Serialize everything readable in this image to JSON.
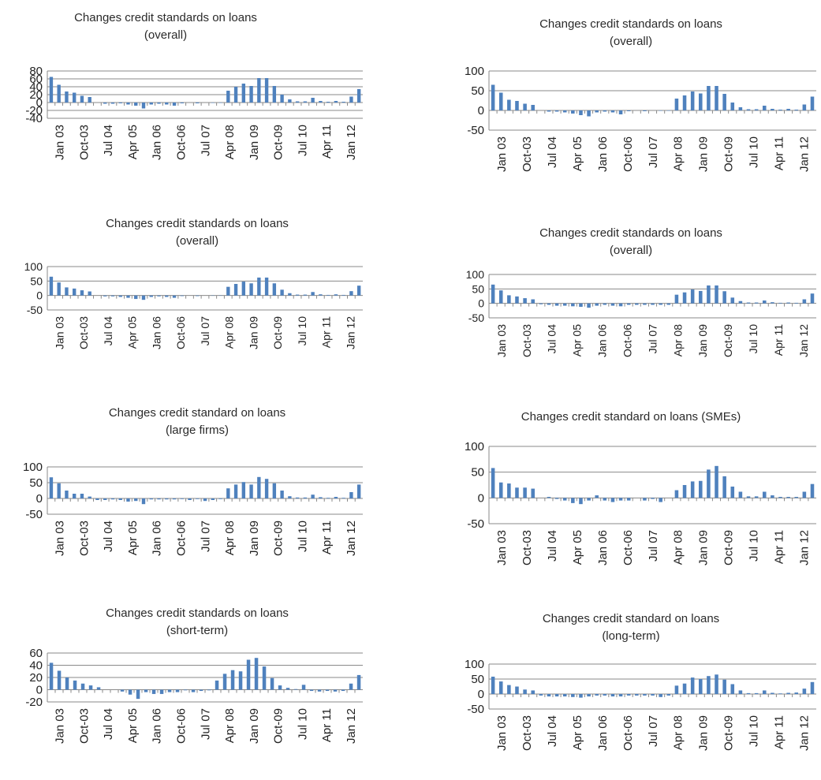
{
  "x_ticks": [
    "Jan 03",
    "Oct-03",
    "Jul 04",
    "Apr 05",
    "Jan 06",
    "Oct-06",
    "Jul 07",
    "Apr 08",
    "Jan 09",
    "Oct-09",
    "Jul 10",
    "Apr 11",
    "Jan 12"
  ],
  "bar_color": "#4f81bd",
  "chart_data": [
    {
      "type": "bar",
      "title": [
        "Changes credit standards on loans",
        "(overall)"
      ],
      "categories_label_ticks": "x_ticks",
      "ylim": [
        -40,
        80
      ],
      "yticks": [
        -40,
        -20,
        0,
        20,
        40,
        60,
        80
      ],
      "values": [
        65,
        45,
        28,
        25,
        17,
        14,
        0,
        -3,
        -3,
        -2,
        -5,
        -8,
        -15,
        -5,
        -3,
        -5,
        -8,
        -2,
        0,
        -2,
        0,
        -1,
        -1,
        30,
        40,
        48,
        42,
        62,
        62,
        42,
        20,
        8,
        3,
        3,
        12,
        4,
        2,
        4,
        2,
        15,
        34
      ]
    },
    {
      "type": "bar",
      "title": [
        "Changes credit standards on loans",
        "(overall)"
      ],
      "ylim": [
        -50,
        100
      ],
      "yticks": [
        -50,
        0,
        50,
        100
      ],
      "values": [
        65,
        45,
        27,
        24,
        17,
        14,
        0,
        -3,
        -3,
        -5,
        -8,
        -12,
        -15,
        -5,
        -3,
        -5,
        -10,
        -2,
        0,
        -2,
        0,
        -1,
        -1,
        30,
        38,
        48,
        43,
        62,
        62,
        42,
        20,
        8,
        3,
        3,
        12,
        4,
        2,
        4,
        2,
        15,
        35
      ]
    },
    {
      "type": "bar",
      "title": [
        "Changes credit standards on loans",
        "(overall)"
      ],
      "ylim": [
        -50,
        100
      ],
      "yticks": [
        -50,
        0,
        50,
        100
      ],
      "values": [
        65,
        45,
        28,
        24,
        18,
        14,
        0,
        -3,
        -3,
        -5,
        -8,
        -12,
        -15,
        -5,
        -3,
        -5,
        -8,
        -2,
        0,
        -2,
        0,
        -1,
        -1,
        30,
        40,
        48,
        42,
        62,
        62,
        42,
        20,
        8,
        3,
        3,
        12,
        4,
        2,
        4,
        2,
        15,
        34
      ]
    },
    {
      "type": "bar",
      "title": [
        "Changes credit standards on loans",
        "(overall)"
      ],
      "ylim": [
        -50,
        100
      ],
      "yticks": [
        -50,
        0,
        50,
        100
      ],
      "values": [
        65,
        45,
        28,
        24,
        18,
        14,
        -3,
        -5,
        -8,
        -8,
        -10,
        -12,
        -15,
        -8,
        -5,
        -8,
        -10,
        -5,
        -5,
        -5,
        -5,
        -5,
        -5,
        30,
        38,
        48,
        43,
        62,
        62,
        42,
        20,
        8,
        3,
        3,
        10,
        4,
        2,
        3,
        2,
        14,
        34
      ]
    },
    {
      "type": "bar",
      "title": [
        "Changes credit standard on loans",
        "(large firms)"
      ],
      "ylim": [
        -50,
        100
      ],
      "yticks": [
        -50,
        0,
        50,
        100
      ],
      "values": [
        67,
        48,
        25,
        15,
        15,
        6,
        -5,
        -5,
        -3,
        -5,
        -10,
        -8,
        -18,
        -3,
        -3,
        -3,
        -3,
        -2,
        -5,
        -2,
        -8,
        -5,
        -2,
        32,
        44,
        52,
        44,
        68,
        62,
        48,
        25,
        7,
        3,
        3,
        12,
        4,
        2,
        5,
        2,
        20,
        44
      ]
    },
    {
      "type": "bar",
      "title": [
        "Changes credit standard on loans (SMEs)"
      ],
      "ylim": [
        -50,
        100
      ],
      "yticks": [
        -50,
        0,
        50,
        100
      ],
      "values": [
        58,
        30,
        28,
        20,
        20,
        18,
        0,
        2,
        -2,
        -5,
        -10,
        -12,
        -5,
        5,
        -5,
        -8,
        -5,
        -5,
        0,
        -5,
        -2,
        -8,
        0,
        15,
        25,
        32,
        33,
        55,
        62,
        42,
        22,
        12,
        3,
        3,
        12,
        5,
        2,
        2,
        2,
        12,
        27
      ]
    },
    {
      "type": "bar",
      "title": [
        "Changes credit standards on loans",
        "(short-term)"
      ],
      "ylim": [
        -20,
        60
      ],
      "yticks": [
        -20,
        0,
        20,
        40,
        60
      ],
      "values": [
        44,
        31,
        20,
        15,
        10,
        7,
        4,
        0,
        0,
        -3,
        -8,
        -15,
        -4,
        -7,
        -7,
        -4,
        -4,
        -1,
        -4,
        -2,
        -1,
        15,
        26,
        32,
        30,
        49,
        52,
        38,
        19,
        7,
        3,
        1,
        8,
        -2,
        -3,
        -2,
        -3,
        -2,
        10,
        24
      ]
    },
    {
      "type": "bar",
      "title": [
        "Changes credit standard on loans",
        "(long-term)"
      ],
      "ylim": [
        -50,
        100
      ],
      "yticks": [
        -50,
        0,
        50,
        100
      ],
      "values": [
        58,
        42,
        30,
        25,
        15,
        12,
        -5,
        -8,
        -8,
        -8,
        -10,
        -12,
        -8,
        -5,
        -5,
        -8,
        -8,
        -5,
        -5,
        -5,
        -5,
        -10,
        -5,
        28,
        35,
        55,
        50,
        60,
        65,
        48,
        33,
        12,
        3,
        3,
        12,
        4,
        2,
        4,
        5,
        18,
        40
      ]
    }
  ]
}
